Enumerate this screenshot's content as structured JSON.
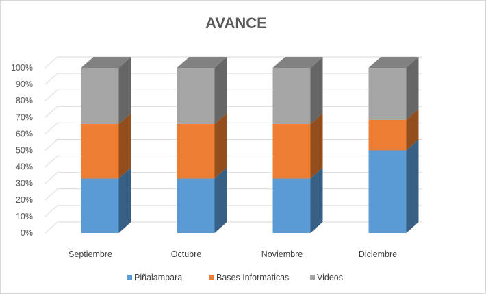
{
  "chart_data": {
    "type": "bar",
    "stacked": "percent",
    "three_d": true,
    "title": "AVANCE",
    "xlabel": "",
    "ylabel": "",
    "categories": [
      "Septiembre",
      "Octubre",
      "Noviembre",
      "Diciembre"
    ],
    "series": [
      {
        "name": "Piñalampara",
        "values": [
          33,
          33,
          33,
          50
        ],
        "color": "#5b9bd5"
      },
      {
        "name": "Bases Informaticas",
        "values": [
          33,
          33,
          33,
          18.5
        ],
        "color": "#ed7d31"
      },
      {
        "name": "Videos",
        "values": [
          34,
          34,
          34,
          31.5
        ],
        "color": "#a5a5a5"
      }
    ],
    "ylim": [
      0,
      100
    ],
    "yticks": [
      "0%",
      "10%",
      "20%",
      "30%",
      "40%",
      "50%",
      "60%",
      "70%",
      "80%",
      "90%",
      "100%"
    ],
    "grid": true,
    "legend_position": "bottom"
  }
}
